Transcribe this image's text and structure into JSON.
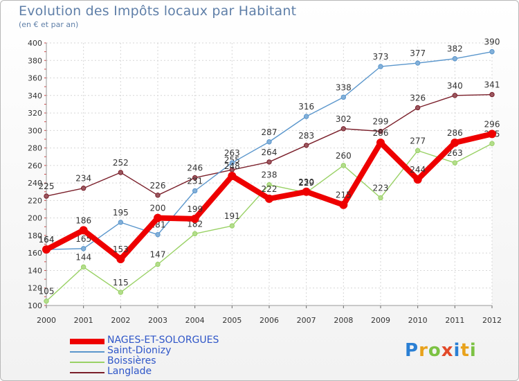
{
  "chart_data": {
    "type": "line",
    "title": "Evolution des Impôts locaux par Habitant",
    "subtitle": "(en € et par an)",
    "xlabel": "",
    "ylabel": "",
    "ylim": [
      100,
      400
    ],
    "yticks": [
      100,
      120,
      140,
      160,
      180,
      200,
      220,
      240,
      260,
      280,
      300,
      320,
      340,
      360,
      380,
      400
    ],
    "x": [
      2000,
      2001,
      2002,
      2003,
      2004,
      2005,
      2006,
      2007,
      2008,
      2009,
      2010,
      2011,
      2012
    ],
    "grid": true,
    "legend": "bottom-left",
    "series": [
      {
        "name": "Langlade",
        "color": "#7a1f2a",
        "values": [
          225,
          234,
          252,
          226,
          246,
          255,
          264,
          283,
          302,
          299,
          326,
          340,
          341
        ]
      },
      {
        "name": "Saint-Dionizy",
        "color": "#5a96cc",
        "values": [
          164,
          165,
          195,
          181,
          231,
          263,
          287,
          316,
          338,
          373,
          377,
          382,
          390
        ]
      },
      {
        "name": "Boissières",
        "color": "#99d165",
        "values": [
          105,
          144,
          115,
          147,
          182,
          191,
          238,
          229,
          260,
          223,
          277,
          263,
          285
        ]
      },
      {
        "name": "NAGES-ET-SOLORGUES",
        "color": "#ee0000",
        "values": [
          164,
          186,
          153,
          200,
          199,
          248,
          222,
          230,
          215,
          286,
          244,
          286,
          296
        ]
      }
    ]
  },
  "legend": {
    "items": [
      {
        "label": "NAGES-ET-SOLORGUES",
        "color": "#ee0000"
      },
      {
        "label": "Saint-Dionizy",
        "color": "#5a96cc"
      },
      {
        "label": "Boissières",
        "color": "#99d165"
      },
      {
        "label": "Langlade",
        "color": "#7a1f2a"
      }
    ]
  },
  "logo": {
    "letters": [
      "P",
      "r",
      "o",
      "x",
      "i",
      "t",
      "i"
    ],
    "colors": [
      "#2a7fd4",
      "#e8a21c",
      "#7cc243",
      "#e24a2a",
      "#2a7fd4",
      "#e8a21c",
      "#7cc243"
    ]
  }
}
